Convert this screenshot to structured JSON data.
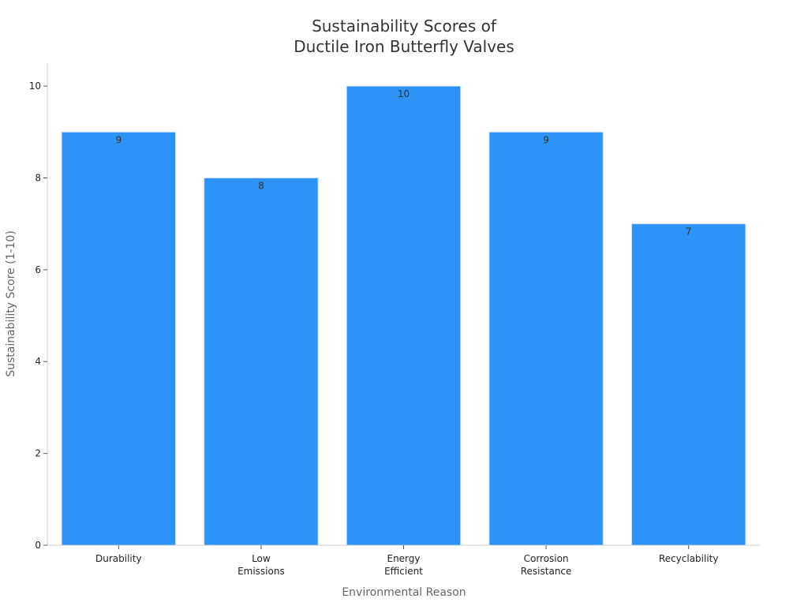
{
  "chart_data": {
    "type": "bar",
    "title": "Sustainability Scores of Ductile Iron Butterfly Valves",
    "title_lines": [
      "Sustainability Scores of",
      "Ductile Iron Butterfly Valves"
    ],
    "xlabel": "Environmental Reason",
    "ylabel": "Sustainability Score (1-10)",
    "categories": [
      "Durability",
      "Low Emissions",
      "Energy Efficient",
      "Corrosion Resistance",
      "Recyclability"
    ],
    "category_lines": [
      [
        "Durability"
      ],
      [
        "Low",
        "Emissions"
      ],
      [
        "Energy",
        "Efficient"
      ],
      [
        "Corrosion",
        "Resistance"
      ],
      [
        "Recyclability"
      ]
    ],
    "values": [
      9,
      8,
      10,
      9,
      7
    ],
    "data_labels": [
      "9",
      "8",
      "10",
      "9",
      "7"
    ],
    "ylim": [
      0,
      10.5
    ],
    "yticks": [
      0,
      2,
      4,
      6,
      8,
      10
    ],
    "grid": false,
    "legend": "none",
    "colors": {
      "bar": "#2e93f7",
      "axis": "#cccccc"
    }
  }
}
